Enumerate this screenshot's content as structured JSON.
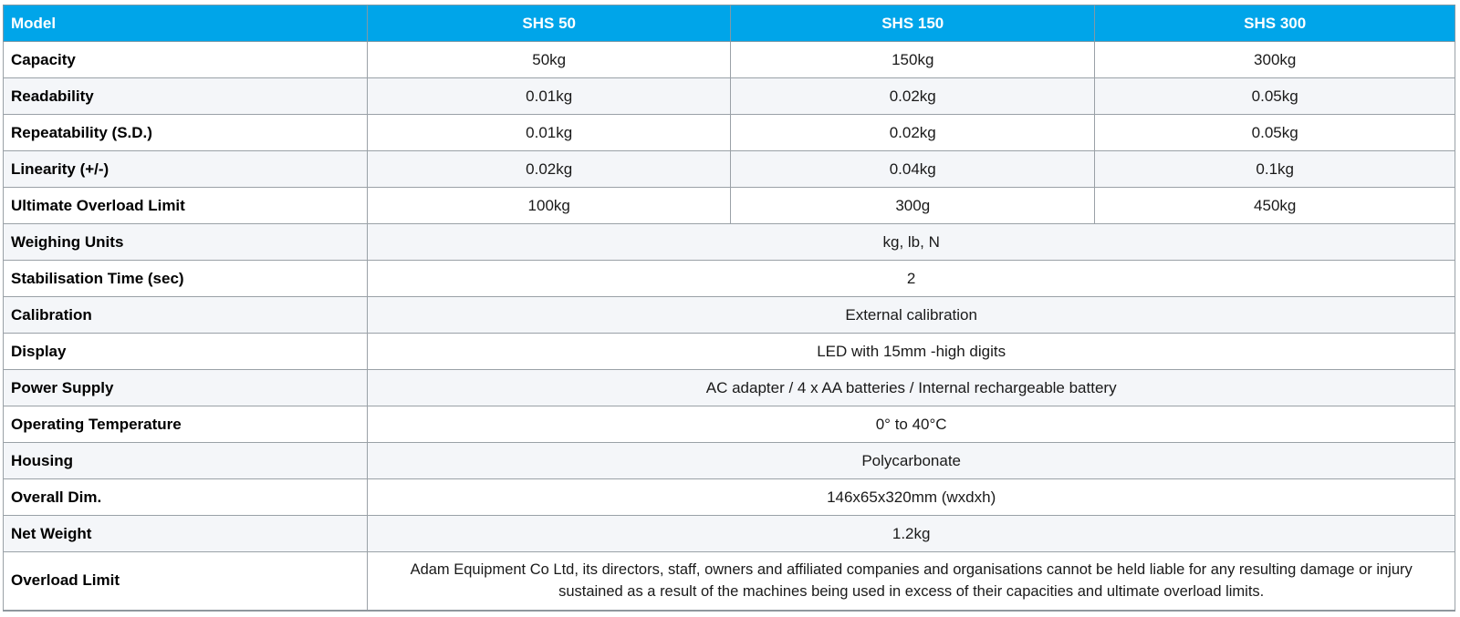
{
  "table": {
    "colors": {
      "header_bg": "#00a5e9",
      "header_text": "#ffffff",
      "alt_row_bg": "#f4f6f9",
      "border": "#9aa1a7"
    },
    "header": {
      "model_label": "Model",
      "columns": [
        "SHS 50",
        "SHS 150",
        "SHS 300"
      ]
    },
    "rows": [
      {
        "label": "Capacity",
        "values": [
          "50kg",
          "150kg",
          "300kg"
        ]
      },
      {
        "label": "Readability",
        "values": [
          "0.01kg",
          "0.02kg",
          "0.05kg"
        ]
      },
      {
        "label": "Repeatability (S.D.)",
        "values": [
          "0.01kg",
          "0.02kg",
          "0.05kg"
        ]
      },
      {
        "label": "Linearity (+/-)",
        "values": [
          "0.02kg",
          "0.04kg",
          "0.1kg"
        ]
      },
      {
        "label": "Ultimate Overload Limit",
        "values": [
          "100kg",
          "300g",
          "450kg"
        ]
      },
      {
        "label": "Weighing Units",
        "span_value": "kg, lb, N"
      },
      {
        "label": "Stabilisation Time (sec)",
        "span_value": "2"
      },
      {
        "label": "Calibration",
        "span_value": "External calibration"
      },
      {
        "label": "Display",
        "span_value": "LED with 15mm -high digits"
      },
      {
        "label": "Power Supply",
        "span_value": "AC adapter / 4 x AA batteries / Internal rechargeable battery"
      },
      {
        "label": "Operating Temperature",
        "span_value": "0° to 40°C"
      },
      {
        "label": "Housing",
        "span_value": "Polycarbonate"
      },
      {
        "label": "Overall Dim.",
        "span_value": "146x65x320mm (wxdxh)"
      },
      {
        "label": "Net Weight",
        "span_value": "1.2kg"
      },
      {
        "label": "Overload Limit",
        "span_value": "Adam Equipment Co Ltd, its directors, staff, owners and affiliated companies and organisations cannot be held liable for any resulting damage or injury sustained as a result of the machines being used in excess of their capacities and ultimate overload limits."
      }
    ]
  }
}
